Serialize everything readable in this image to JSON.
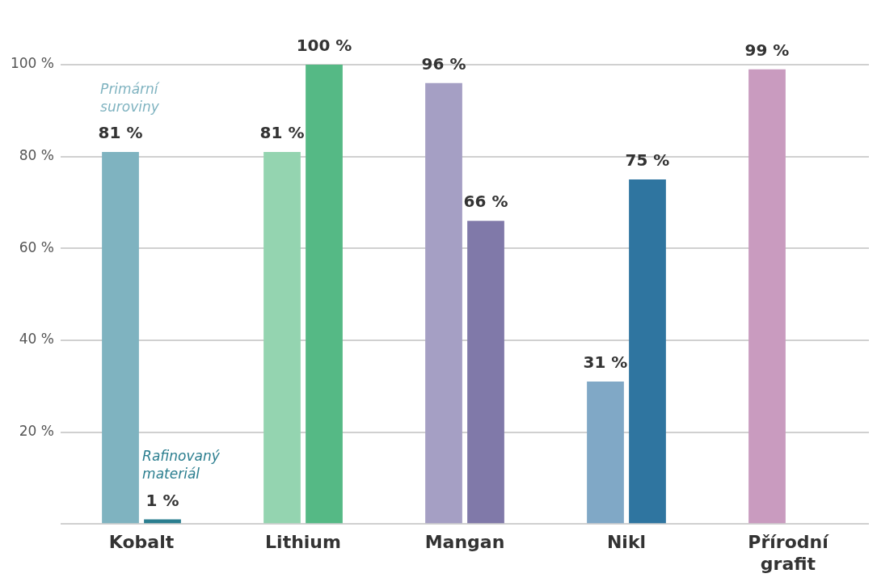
{
  "chart_data": {
    "type": "bar",
    "categories": [
      "Kobalt",
      "Lithium",
      "Mangan",
      "Nikl",
      "Přírodní grafit"
    ],
    "series": [
      {
        "name": "Primární suroviny",
        "colors": [
          "#7fb3c0",
          "#94d4b0",
          "#a59fc4",
          "#80a8c6",
          "#c99bbf"
        ],
        "values": [
          81,
          81,
          96,
          31,
          99
        ],
        "value_labels": [
          "81 %",
          "81 %",
          "96 %",
          "31 %",
          "99 %"
        ]
      },
      {
        "name": "Rafinovaný materiál",
        "colors": [
          "#2b7e8f",
          "#55b985",
          "#8079a9",
          "#2f75a0",
          null
        ],
        "values": [
          1,
          100,
          66,
          75,
          null
        ],
        "value_labels": [
          "1 %",
          "100 %",
          "66 %",
          "75 %",
          null
        ]
      }
    ],
    "ylim": [
      0,
      100
    ],
    "yticks": [
      {
        "value": 0,
        "label": null
      },
      {
        "value": 20,
        "label": "20 %"
      },
      {
        "value": 40,
        "label": "40 %"
      },
      {
        "value": 60,
        "label": "60 %"
      },
      {
        "value": 80,
        "label": "80 %"
      },
      {
        "value": 100,
        "label": "100 %"
      }
    ],
    "grid": "y",
    "legend": false
  }
}
